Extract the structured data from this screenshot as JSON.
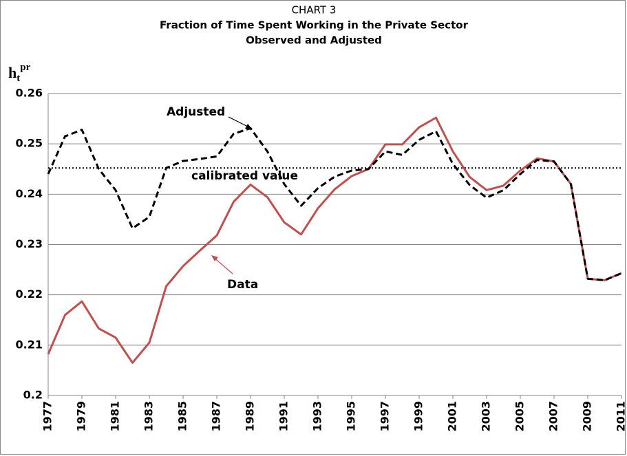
{
  "chart_data": {
    "type": "line",
    "title": [
      "CHART 3",
      "Fraction of Time Spent Working in the Private Sector",
      "Observed and Adjusted"
    ],
    "y_label": {
      "base": "h",
      "sub": "t",
      "sup": "pr"
    },
    "x": [
      1977,
      1978,
      1979,
      1980,
      1981,
      1982,
      1983,
      1984,
      1985,
      1986,
      1987,
      1988,
      1989,
      1990,
      1991,
      1992,
      1993,
      1994,
      1995,
      1996,
      1997,
      1998,
      1999,
      2000,
      2001,
      2002,
      2003,
      2004,
      2005,
      2006,
      2007,
      2008,
      2009,
      2010,
      2011
    ],
    "series": [
      {
        "name": "Data",
        "color": "#c0504d",
        "dashed": false,
        "values": [
          0.2082,
          0.216,
          0.2187,
          0.2133,
          0.2115,
          0.2065,
          0.2105,
          0.2217,
          0.2257,
          0.2288,
          0.2318,
          0.2385,
          0.2419,
          0.2394,
          0.2344,
          0.232,
          0.2372,
          0.241,
          0.2436,
          0.245,
          0.2499,
          0.2499,
          0.2533,
          0.2552,
          0.2485,
          0.2434,
          0.2408,
          0.2417,
          0.2447,
          0.2471,
          0.2465,
          0.242,
          0.2232,
          0.2229,
          0.2243
        ]
      },
      {
        "name": "Adjusted",
        "color": "#000000",
        "dashed": true,
        "values": [
          0.244,
          0.2515,
          0.2528,
          0.245,
          0.2408,
          0.2332,
          0.2355,
          0.2452,
          0.2466,
          0.247,
          0.2475,
          0.252,
          0.2531,
          0.2485,
          0.242,
          0.2377,
          0.2412,
          0.2435,
          0.2447,
          0.245,
          0.2485,
          0.2478,
          0.2508,
          0.2525,
          0.246,
          0.2418,
          0.2393,
          0.2408,
          0.244,
          0.2468,
          0.2465,
          0.242,
          0.2232,
          0.2229,
          0.2243
        ]
      }
    ],
    "reference_line": {
      "label": "calibrated value",
      "value": 0.2452
    },
    "xlim": [
      1977,
      2011
    ],
    "xticks": [
      1977,
      1979,
      1981,
      1983,
      1985,
      1987,
      1989,
      1991,
      1993,
      1995,
      1997,
      1999,
      2001,
      2003,
      2005,
      2007,
      2009,
      2011
    ],
    "ylim": [
      0.2,
      0.26
    ],
    "yticks": [
      0.2,
      0.21,
      0.22,
      0.23,
      0.24,
      0.25,
      0.26
    ],
    "grid": true
  }
}
